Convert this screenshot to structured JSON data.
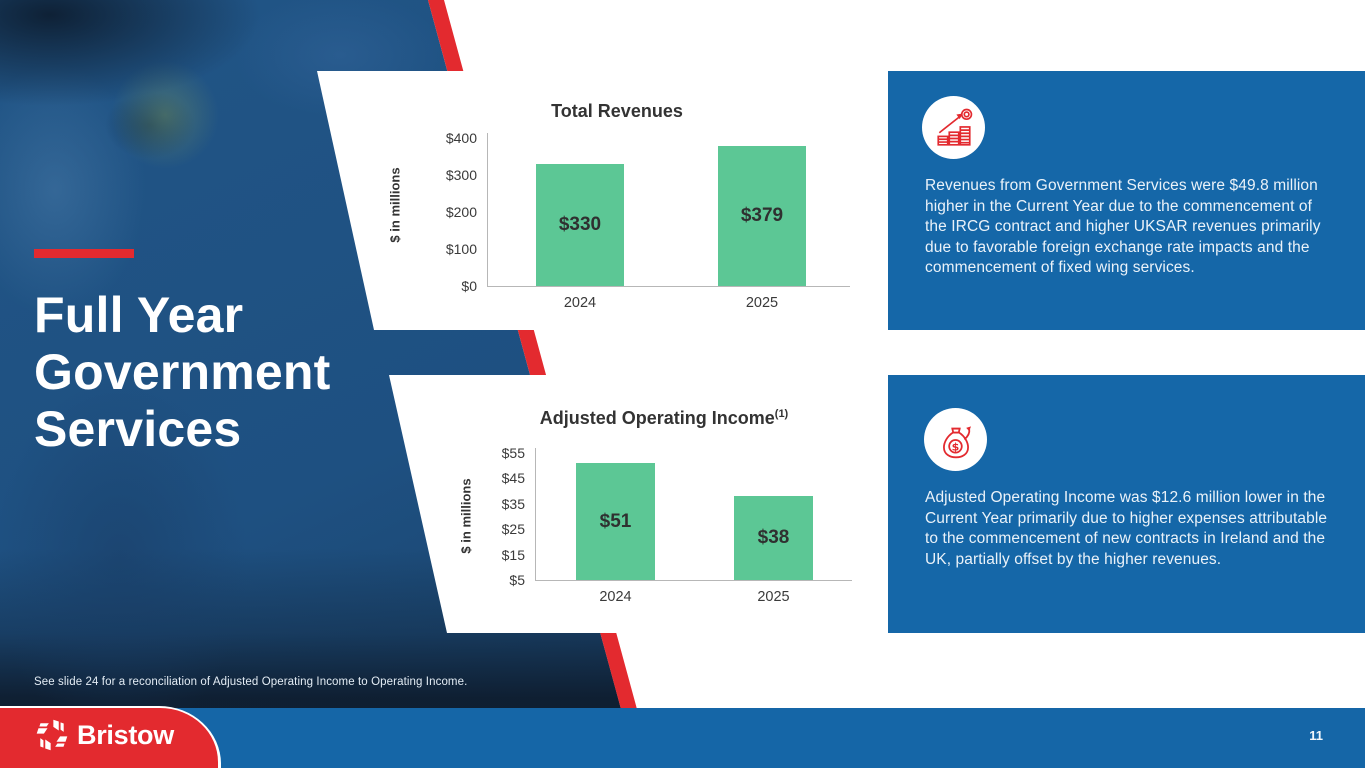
{
  "slide": {
    "title": "Full Year Government Services",
    "footnote": "See slide 24 for a reconciliation of Adjusted Operating Income to Operating Income.",
    "page_number": "11",
    "logo_text": "Bristow"
  },
  "colors": {
    "accent_red": "#E32A2F",
    "panel_blue": "#1567A8",
    "footer_blue": "#1566A7",
    "bar_green": "#5CC795",
    "photo_navy": "#14304C",
    "chart_text": "#3A3A3A"
  },
  "chart_data": [
    {
      "type": "bar",
      "title": "Total Revenues",
      "title_sup": "",
      "ylabel": "$ in millions",
      "categories": [
        "2024",
        "2025"
      ],
      "values": [
        330,
        379
      ],
      "value_labels": [
        "$330",
        "$379"
      ],
      "ytick_labels": [
        "$400",
        "$300",
        "$200",
        "$100",
        "$0"
      ],
      "ylim": [
        0,
        400
      ],
      "grid": false,
      "legend": false,
      "bar_color": "#5CC795"
    },
    {
      "type": "bar",
      "title": "Adjusted Operating Income",
      "title_sup": "(1)",
      "ylabel": "$ in millions",
      "categories": [
        "2024",
        "2025"
      ],
      "values": [
        51,
        38
      ],
      "value_labels": [
        "$51",
        "$38"
      ],
      "ytick_labels": [
        "$55",
        "$45",
        "$35",
        "$25",
        "$15",
        "$5"
      ],
      "ylim": [
        5,
        55
      ],
      "grid": false,
      "legend": false,
      "bar_color": "#5CC795"
    }
  ],
  "info_panels": [
    {
      "icon": "coin-growth-icon",
      "text": "Revenues from Government Services were $49.8 million higher in the Current Year due to the commencement of the IRCG contract and higher UKSAR revenues primarily due to favorable foreign exchange rate impacts and the commencement of fixed wing services."
    },
    {
      "icon": "money-bag-icon",
      "text": "Adjusted Operating Income was $12.6 million lower in the Current Year primarily due to higher expenses attributable to the commencement of new contracts in Ireland and the UK, partially offset by the higher revenues."
    }
  ]
}
